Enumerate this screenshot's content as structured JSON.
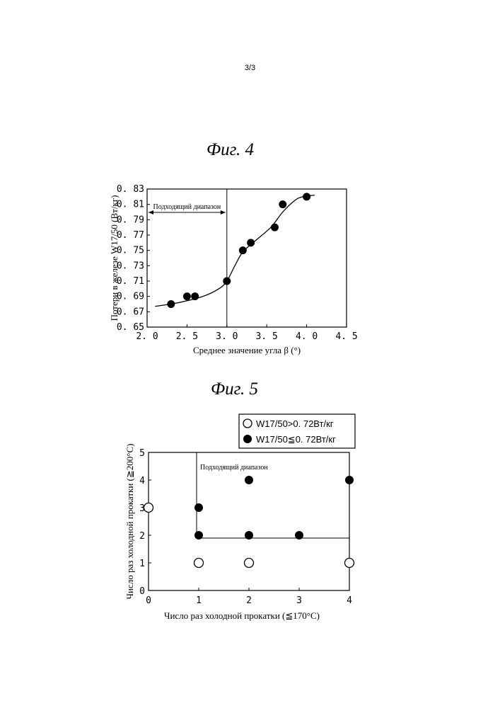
{
  "page_number": "3/3",
  "figures": [
    {
      "title": "Фиг. 4",
      "range_label": "Подходящий диапазон"
    },
    {
      "title": "Фиг. 5",
      "range_label": "Подходящий диапазон",
      "legend": [
        {
          "symbol": "open-circle",
          "label": "W17/50>0. 72Вт/кг"
        },
        {
          "symbol": "filled-circle",
          "label": "W17/50≦0. 72Вт/кг"
        }
      ]
    }
  ],
  "chart_data": [
    {
      "type": "scatter",
      "title": "Фиг. 4",
      "xlabel": "Среднее значение угла β (°)",
      "ylabel": "Потери в железе W17/50 (Вт/кг)",
      "xlim": [
        2.0,
        4.5
      ],
      "ylim": [
        0.65,
        0.83
      ],
      "xticks": [
        "2. 0",
        "2. 5",
        "3. 0",
        "3. 5",
        "4. 0",
        "4. 5"
      ],
      "yticks": [
        "0. 65",
        "0. 67",
        "0. 69",
        "0. 71",
        "0. 73",
        "0. 75",
        "0. 77",
        "0. 79",
        "0. 81",
        "0. 83"
      ],
      "grid": false,
      "suitable_range_x": [
        2.0,
        3.0
      ],
      "points": [
        {
          "x": 2.3,
          "y": 0.68
        },
        {
          "x": 2.5,
          "y": 0.69
        },
        {
          "x": 2.6,
          "y": 0.69
        },
        {
          "x": 3.0,
          "y": 0.71
        },
        {
          "x": 3.2,
          "y": 0.75
        },
        {
          "x": 3.3,
          "y": 0.76
        },
        {
          "x": 3.6,
          "y": 0.78
        },
        {
          "x": 3.7,
          "y": 0.81
        },
        {
          "x": 4.0,
          "y": 0.82
        }
      ],
      "trend_curve": [
        {
          "x": 2.1,
          "y": 0.677
        },
        {
          "x": 2.4,
          "y": 0.682
        },
        {
          "x": 2.7,
          "y": 0.69
        },
        {
          "x": 2.9,
          "y": 0.7
        },
        {
          "x": 3.0,
          "y": 0.71
        },
        {
          "x": 3.1,
          "y": 0.73
        },
        {
          "x": 3.2,
          "y": 0.748
        },
        {
          "x": 3.35,
          "y": 0.762
        },
        {
          "x": 3.55,
          "y": 0.78
        },
        {
          "x": 3.7,
          "y": 0.8
        },
        {
          "x": 3.85,
          "y": 0.815
        },
        {
          "x": 3.95,
          "y": 0.82
        },
        {
          "x": 4.1,
          "y": 0.822
        }
      ]
    },
    {
      "type": "scatter",
      "title": "Фиг. 5",
      "xlabel": "Число раз холодной прокатки (≦170°C)",
      "ylabel": "Число раз холодной прокатки (≧200°C)",
      "xlim": [
        0,
        4
      ],
      "ylim": [
        0,
        5
      ],
      "xticks": [
        "0",
        "1",
        "2",
        "3",
        "4"
      ],
      "yticks": [
        "0",
        "1",
        "2",
        "3",
        "4",
        "5"
      ],
      "grid": false,
      "legend_position": "top-right",
      "suitable_range": {
        "x_min": 1,
        "y_min": 2
      },
      "series": [
        {
          "name": "W17/50>0. 72Вт/кг",
          "marker": "open",
          "points": [
            {
              "x": 0,
              "y": 3
            },
            {
              "x": 1,
              "y": 1
            },
            {
              "x": 2,
              "y": 1
            },
            {
              "x": 4,
              "y": 1
            }
          ]
        },
        {
          "name": "W17/50≦0. 72Вт/кг",
          "marker": "filled",
          "points": [
            {
              "x": 1,
              "y": 3
            },
            {
              "x": 1,
              "y": 2
            },
            {
              "x": 2,
              "y": 4
            },
            {
              "x": 2,
              "y": 2
            },
            {
              "x": 3,
              "y": 2
            },
            {
              "x": 4,
              "y": 4
            }
          ]
        }
      ]
    }
  ]
}
